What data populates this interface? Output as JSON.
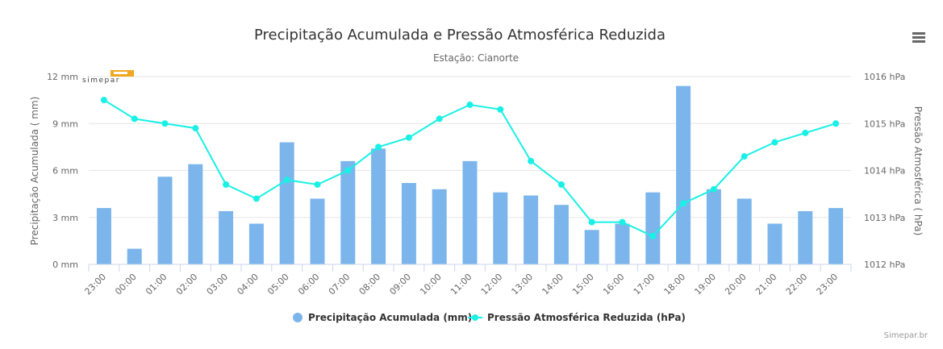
{
  "chart_data": {
    "type": "bar+line",
    "title": "Precipitação Acumulada e Pressão Atmosférica Reduzida",
    "subtitle": "Estação: Cianorte",
    "categories": [
      "23:00",
      "00:00",
      "01:00",
      "02:00",
      "03:00",
      "04:00",
      "05:00",
      "06:00",
      "07:00",
      "08:00",
      "09:00",
      "10:00",
      "11:00",
      "12:00",
      "13:00",
      "14:00",
      "15:00",
      "16:00",
      "17:00",
      "18:00",
      "19:00",
      "20:00",
      "21:00",
      "22:00",
      "23:00"
    ],
    "y_left": {
      "label": "Precipitação Acumulada ( mm)",
      "range": [
        0,
        12
      ],
      "ticks": [
        0,
        3,
        6,
        9,
        12
      ],
      "tick_labels": [
        "0 mm",
        "3 mm",
        "6 mm",
        "9 mm",
        "12 mm"
      ]
    },
    "y_right": {
      "label": "Pressão Atmosférica ( hPa)",
      "range": [
        1012,
        1016
      ],
      "ticks": [
        1012,
        1013,
        1014,
        1015,
        1016
      ],
      "tick_labels": [
        "1012 hPa",
        "1013 hPa",
        "1014 hPa",
        "1015 hPa",
        "1016 hPa"
      ]
    },
    "series": [
      {
        "name": "Precipitação Acumulada (mm)",
        "type": "bar",
        "axis": "left",
        "color": "#7cb5ec",
        "values": [
          3.6,
          1.0,
          5.6,
          6.4,
          3.4,
          2.6,
          7.8,
          4.2,
          6.6,
          7.4,
          5.2,
          4.8,
          6.6,
          4.6,
          4.4,
          3.8,
          2.2,
          2.6,
          4.6,
          11.4,
          4.8,
          4.2,
          2.6,
          3.4,
          3.6
        ]
      },
      {
        "name": "Pressão Atmosférica Reduzida (hPa)",
        "type": "line",
        "axis": "right",
        "color": "#19f0e6",
        "values": [
          1015.5,
          1015.1,
          1015.0,
          1014.9,
          1013.7,
          1013.4,
          1013.8,
          1013.7,
          1014.0,
          1014.5,
          1014.7,
          1015.1,
          1015.4,
          1015.3,
          1014.2,
          1013.7,
          1012.9,
          1012.9,
          1012.6,
          1013.3,
          1013.6,
          1014.3,
          1014.6,
          1014.8,
          1015.0
        ]
      }
    ],
    "grid": true,
    "legend": "bottom-center"
  },
  "logo": {
    "text": "simepar"
  },
  "credits": "Simepar.br",
  "icons": {
    "menu": "hamburger-menu-icon"
  }
}
